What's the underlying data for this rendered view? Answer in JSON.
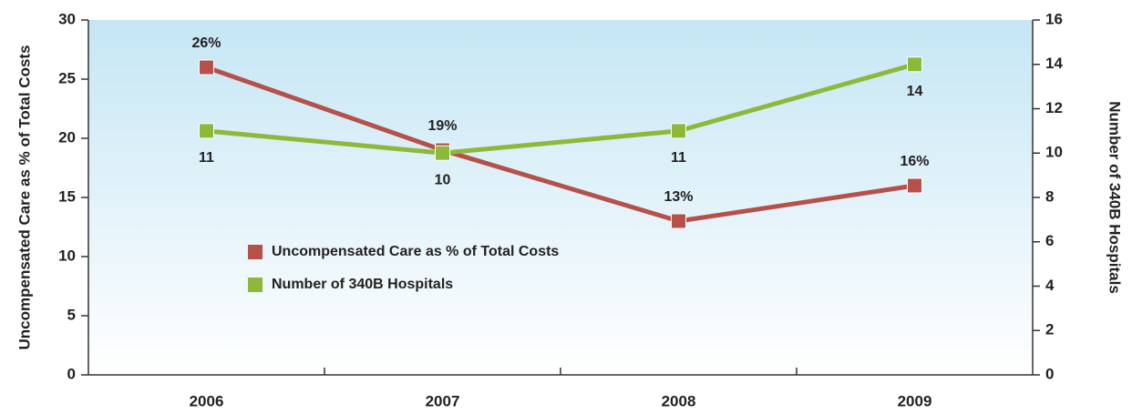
{
  "chart_data": {
    "type": "line",
    "categories": [
      "2006",
      "2007",
      "2008",
      "2009"
    ],
    "series": [
      {
        "name": "Uncompensated Care as % of Total Costs",
        "color": "#b5504a",
        "values": [
          26,
          19,
          13,
          16
        ],
        "value_labels": [
          "26%",
          "19%",
          "13%",
          "16%"
        ]
      },
      {
        "name": "Number of 340B Hospitals",
        "color": "#8db83a",
        "axis": "y2",
        "values": [
          11,
          10,
          11,
          14
        ]
      }
    ],
    "ylabel": "Uncompensated Care as % of Total Costs",
    "y2label": "Number of 340B Hospitals",
    "ylim": [
      0,
      30
    ],
    "yticks": [
      0,
      5,
      10,
      15,
      20,
      25,
      30
    ],
    "y2lim": [
      0,
      16
    ],
    "y2ticks": [
      0,
      2,
      4,
      6,
      8,
      10,
      12,
      14,
      16
    ],
    "legend": "center-left"
  }
}
